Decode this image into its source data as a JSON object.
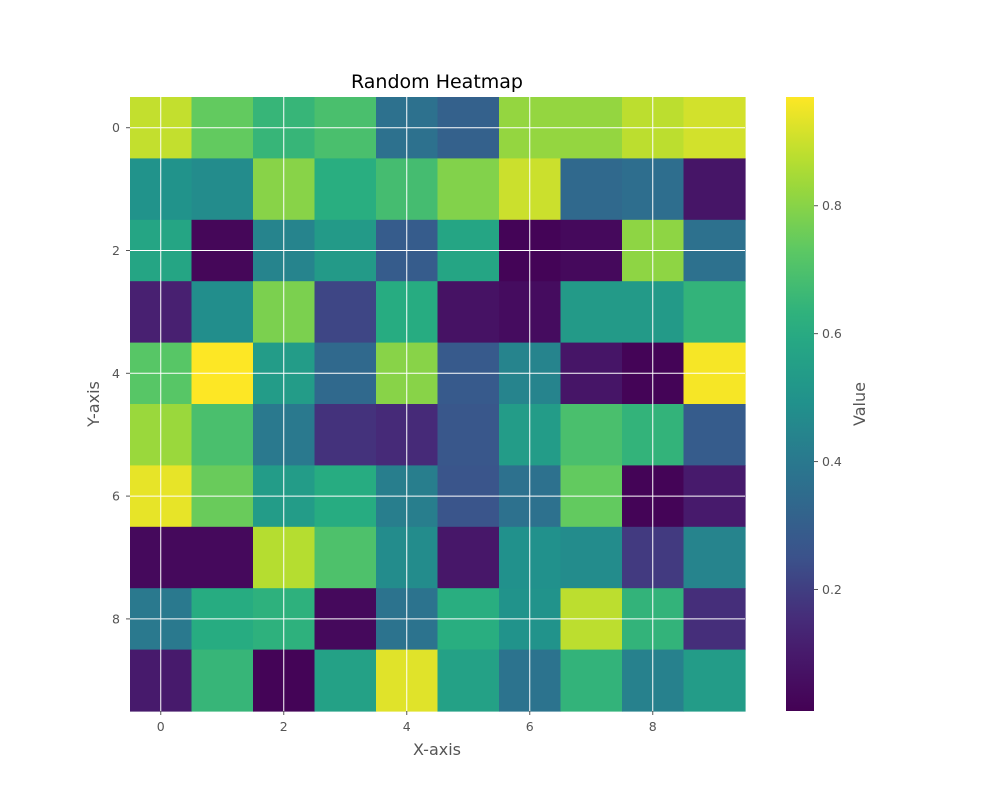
{
  "chart_data": {
    "type": "heatmap",
    "title": "Random Heatmap",
    "xlabel": "X-axis",
    "ylabel": "Y-axis",
    "colorbar_label": "Value",
    "colormap": "viridis",
    "x_ticks": [
      0,
      2,
      4,
      6,
      8
    ],
    "y_ticks": [
      0,
      2,
      4,
      6,
      8
    ],
    "colorbar_ticks": [
      0.2,
      0.4,
      0.6,
      0.8
    ],
    "colorbar_tick_labels": [
      "0.2",
      "0.4",
      "0.6",
      "0.8"
    ],
    "value_range": [
      0.01,
      0.97
    ],
    "grid": true,
    "values": [
      [
        0.89,
        0.74,
        0.65,
        0.69,
        0.37,
        0.31,
        0.82,
        0.82,
        0.88,
        0.91
      ],
      [
        0.5,
        0.47,
        0.8,
        0.62,
        0.68,
        0.79,
        0.9,
        0.34,
        0.36,
        0.08
      ],
      [
        0.58,
        0.03,
        0.44,
        0.53,
        0.29,
        0.58,
        0.02,
        0.04,
        0.81,
        0.37
      ],
      [
        0.12,
        0.48,
        0.78,
        0.22,
        0.61,
        0.07,
        0.05,
        0.53,
        0.53,
        0.64
      ],
      [
        0.72,
        0.97,
        0.54,
        0.34,
        0.8,
        0.28,
        0.44,
        0.08,
        0.02,
        0.96
      ],
      [
        0.83,
        0.69,
        0.4,
        0.17,
        0.15,
        0.27,
        0.54,
        0.69,
        0.64,
        0.29
      ],
      [
        0.94,
        0.75,
        0.54,
        0.61,
        0.42,
        0.26,
        0.37,
        0.74,
        0.02,
        0.1
      ],
      [
        0.04,
        0.04,
        0.87,
        0.7,
        0.47,
        0.09,
        0.49,
        0.47,
        0.19,
        0.44
      ],
      [
        0.4,
        0.61,
        0.63,
        0.04,
        0.38,
        0.62,
        0.5,
        0.88,
        0.64,
        0.16
      ],
      [
        0.1,
        0.65,
        0.02,
        0.56,
        0.93,
        0.56,
        0.38,
        0.64,
        0.43,
        0.54
      ]
    ]
  }
}
